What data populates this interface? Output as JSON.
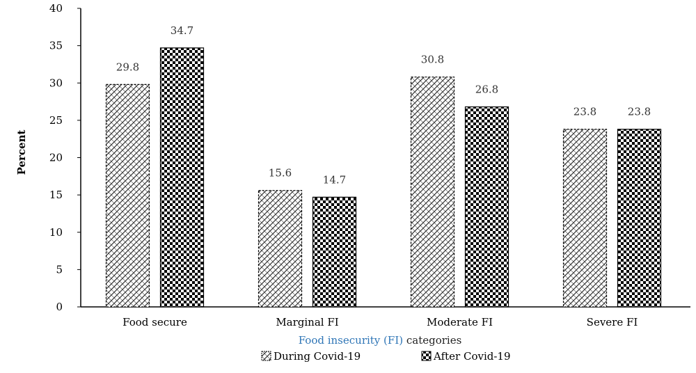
{
  "chart_data": {
    "type": "bar",
    "title": "",
    "xlabel": {
      "parts": [
        {
          "text": "Food insecurity (FI)",
          "color": "#2e75b6"
        },
        {
          "text": " categories",
          "color": "#222222"
        }
      ]
    },
    "ylabel": "Percent",
    "categories": [
      "Food secure",
      "Marginal FI",
      "Moderate FI",
      "Severe FI"
    ],
    "series": [
      {
        "name": "During Covid-19",
        "pattern": "diagonal-cross-light",
        "values": [
          29.8,
          15.6,
          30.8,
          23.8
        ]
      },
      {
        "name": "After Covid-19",
        "pattern": "checkerboard-dark",
        "values": [
          34.7,
          14.7,
          26.8,
          23.8
        ]
      }
    ],
    "ylim": [
      0,
      40
    ],
    "yticks": [
      0,
      5,
      10,
      15,
      20,
      25,
      30,
      35,
      40
    ],
    "grid": false,
    "data_labels": true,
    "legend_position": "bottom"
  }
}
